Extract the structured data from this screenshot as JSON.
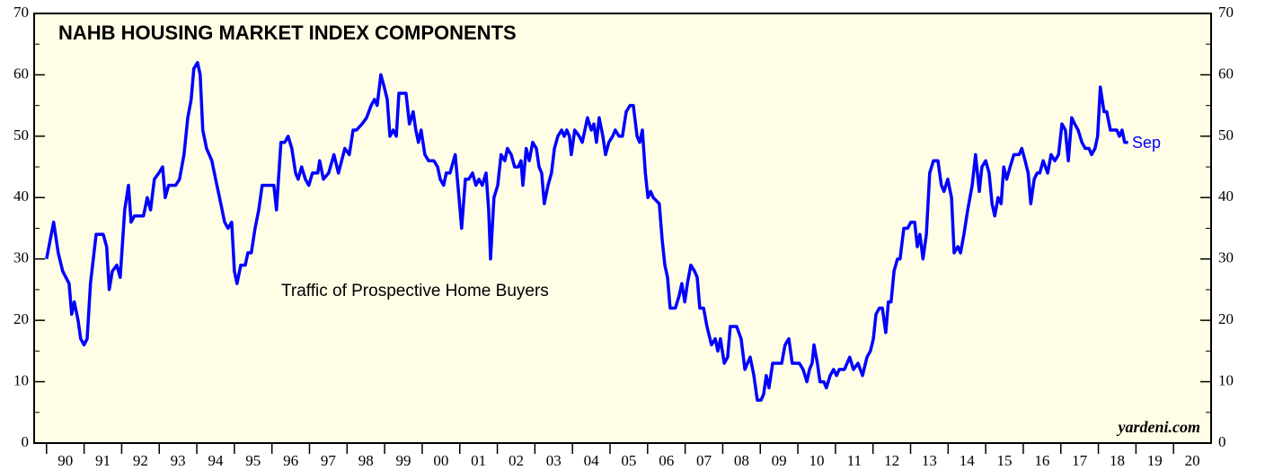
{
  "chart_data": {
    "type": "line",
    "title": "NAHB HOUSING MARKET INDEX COMPONENTS",
    "annotations": [
      "Traffic of Prospective Home Buyers",
      "Sep",
      "yardeni.com"
    ],
    "series": [
      {
        "name": "Traffic of Prospective Home Buyers",
        "color": "#0000ff",
        "x": [
          1990.0,
          1990.19,
          1990.31,
          1990.43,
          1990.6,
          1990.67,
          1990.74,
          1990.84,
          1990.91,
          1991.0,
          1991.08,
          1991.17,
          1991.32,
          1991.51,
          1991.6,
          1991.67,
          1991.75,
          1991.87,
          1991.96,
          1992.08,
          1992.18,
          1992.25,
          1992.34,
          1992.58,
          1992.68,
          1992.77,
          1992.87,
          1992.99,
          1993.09,
          1993.16,
          1993.25,
          1993.44,
          1993.54,
          1993.66,
          1993.76,
          1993.85,
          1993.92,
          1994.02,
          1994.09,
          1994.16,
          1994.26,
          1994.4,
          1994.5,
          1994.64,
          1994.74,
          1994.83,
          1994.93,
          1995.0,
          1995.07,
          1995.17,
          1995.29,
          1995.36,
          1995.45,
          1995.55,
          1995.65,
          1995.74,
          1995.98,
          1996.05,
          1996.12,
          1996.24,
          1996.34,
          1996.43,
          1996.53,
          1996.63,
          1996.7,
          1996.79,
          1996.89,
          1996.98,
          1997.08,
          1997.22,
          1997.27,
          1997.37,
          1997.51,
          1997.65,
          1997.77,
          1997.94,
          1998.06,
          1998.16,
          1998.25,
          1998.4,
          1998.52,
          1998.64,
          1998.73,
          1998.8,
          1998.9,
          1998.99,
          1999.07,
          1999.14,
          1999.23,
          1999.31,
          1999.38,
          1999.57,
          1999.66,
          1999.76,
          1999.83,
          1999.9,
          1999.97,
          2000.07,
          2000.17,
          2000.31,
          2000.41,
          2000.48,
          2000.57,
          2000.64,
          2000.74,
          2000.88,
          2000.98,
          2001.05,
          2001.15,
          2001.24,
          2001.34,
          2001.43,
          2001.51,
          2001.6,
          2001.7,
          2001.77,
          2001.82,
          2001.91,
          2002.01,
          2002.1,
          2002.2,
          2002.27,
          2002.37,
          2002.46,
          2002.56,
          2002.63,
          2002.68,
          2002.77,
          2002.85,
          2002.94,
          2003.04,
          2003.11,
          2003.18,
          2003.25,
          2003.35,
          2003.44,
          2003.52,
          2003.61,
          2003.71,
          2003.78,
          2003.85,
          2003.92,
          2003.97,
          2004.06,
          2004.18,
          2004.26,
          2004.33,
          2004.4,
          2004.5,
          2004.57,
          2004.64,
          2004.71,
          2004.81,
          2004.88,
          2004.97,
          2005.07,
          2005.14,
          2005.24,
          2005.33,
          2005.43,
          2005.53,
          2005.62,
          2005.72,
          2005.79,
          2005.86,
          2005.94,
          2006.01,
          2006.08,
          2006.15,
          2006.31,
          2006.39,
          2006.46,
          2006.53,
          2006.6,
          2006.74,
          2006.84,
          2006.91,
          2006.99,
          2007.06,
          2007.15,
          2007.25,
          2007.32,
          2007.39,
          2007.49,
          2007.58,
          2007.7,
          2007.8,
          2007.87,
          2007.94,
          2008.04,
          2008.13,
          2008.2,
          2008.37,
          2008.49,
          2008.59,
          2008.66,
          2008.73,
          2008.83,
          2008.92,
          2009.02,
          2009.09,
          2009.16,
          2009.23,
          2009.33,
          2009.57,
          2009.66,
          2009.76,
          2009.85,
          2010.04,
          2010.14,
          2010.24,
          2010.31,
          2010.38,
          2010.43,
          2010.52,
          2010.59,
          2010.69,
          2010.76,
          2010.86,
          2010.95,
          2011.03,
          2011.1,
          2011.24,
          2011.38,
          2011.48,
          2011.6,
          2011.72,
          2011.84,
          2011.93,
          2012.01,
          2012.08,
          2012.17,
          2012.25,
          2012.34,
          2012.41,
          2012.48,
          2012.56,
          2012.65,
          2012.72,
          2012.82,
          2012.92,
          2013.01,
          2013.11,
          2013.18,
          2013.25,
          2013.33,
          2013.42,
          2013.51,
          2013.61,
          2013.73,
          2013.82,
          2013.89,
          2013.99,
          2014.09,
          2014.16,
          2014.26,
          2014.33,
          2014.42,
          2014.52,
          2014.64,
          2014.73,
          2014.83,
          2014.9,
          2015.0,
          2015.09,
          2015.17,
          2015.24,
          2015.33,
          2015.41,
          2015.48,
          2015.56,
          2015.65,
          2015.75,
          2015.89,
          2015.96,
          2016.05,
          2016.13,
          2016.2,
          2016.29,
          2016.37,
          2016.44,
          2016.53,
          2016.65,
          2016.74,
          2016.84,
          2016.94,
          2017.03,
          2017.12,
          2017.2,
          2017.29,
          2017.37,
          2017.46,
          2017.56,
          2017.65,
          2017.75,
          2017.82,
          2017.91,
          2017.98,
          2018.05,
          2018.15,
          2018.22,
          2018.32,
          2018.49,
          2018.56,
          2018.63,
          2018.7,
          2018.79
        ],
        "values": [
          30,
          36,
          31,
          28,
          26,
          21,
          23,
          20,
          17,
          16,
          17,
          26,
          34,
          34,
          32,
          25,
          28,
          29,
          27,
          38,
          42,
          36,
          37,
          37,
          40,
          38,
          43,
          44,
          45,
          40,
          42,
          42,
          43,
          47,
          53,
          56,
          61,
          62,
          60,
          51,
          48,
          46,
          43,
          39,
          36,
          35,
          36,
          28,
          26,
          29,
          29,
          31,
          31,
          35,
          38,
          42,
          42,
          42,
          38,
          49,
          49,
          50,
          48,
          44,
          43,
          45,
          43,
          42,
          44,
          44,
          46,
          43,
          44,
          47,
          44,
          48,
          47,
          51,
          51,
          52,
          53,
          55,
          56,
          55,
          60,
          58,
          56,
          50,
          51,
          50,
          57,
          57,
          52,
          54,
          51,
          49,
          51,
          47,
          46,
          46,
          45,
          43,
          42,
          44,
          44,
          47,
          40,
          35,
          43,
          43,
          44,
          42,
          43,
          42,
          44,
          38,
          30,
          40,
          42,
          47,
          46,
          48,
          47,
          45,
          45,
          46,
          42,
          48,
          46,
          49,
          48,
          45,
          44,
          39,
          42,
          44,
          48,
          50,
          51,
          50,
          51,
          50,
          47,
          51,
          50,
          49,
          51,
          53,
          51,
          52,
          49,
          53,
          50,
          47,
          49,
          50,
          51,
          50,
          50,
          54,
          55,
          55,
          50,
          49,
          51,
          44,
          40,
          41,
          40,
          39,
          33,
          29,
          27,
          22,
          22,
          24,
          26,
          23,
          26,
          29,
          28,
          27,
          22,
          22,
          19,
          16,
          17,
          15,
          17,
          13,
          14,
          19,
          19,
          17,
          12,
          13,
          14,
          11,
          7,
          7,
          8,
          11,
          9,
          13,
          13,
          16,
          17,
          13,
          13,
          12,
          10,
          12,
          13,
          16,
          13,
          10,
          10,
          9,
          11,
          12,
          11,
          12,
          12,
          14,
          12,
          13,
          11,
          14,
          15,
          17,
          21,
          22,
          22,
          18,
          23,
          23,
          28,
          30,
          30,
          35,
          35,
          36,
          36,
          32,
          34,
          30,
          34,
          44,
          46,
          46,
          42,
          41,
          43,
          40,
          31,
          32,
          31,
          34,
          38,
          42,
          47,
          41,
          45,
          46,
          44,
          39,
          37,
          40,
          39,
          45,
          43,
          45,
          47,
          47,
          48,
          46,
          44,
          39,
          43,
          44,
          44,
          46,
          44,
          47,
          46,
          47,
          52,
          51,
          46,
          53,
          52,
          51,
          49,
          48,
          48,
          47,
          48,
          50,
          58,
          54,
          54,
          51,
          51,
          50,
          51,
          49,
          49
        ]
      }
    ],
    "xlim": [
      1989.67,
      2021
    ],
    "xticks": [
      {
        "value": 1990.5,
        "label": "90"
      },
      {
        "value": 1991.5,
        "label": "91"
      },
      {
        "value": 1992.5,
        "label": "92"
      },
      {
        "value": 1993.5,
        "label": "93"
      },
      {
        "value": 1994.5,
        "label": "94"
      },
      {
        "value": 1995.5,
        "label": "95"
      },
      {
        "value": 1996.5,
        "label": "96"
      },
      {
        "value": 1997.5,
        "label": "97"
      },
      {
        "value": 1998.5,
        "label": "98"
      },
      {
        "value": 1999.5,
        "label": "99"
      },
      {
        "value": 2000.5,
        "label": "00"
      },
      {
        "value": 2001.5,
        "label": "01"
      },
      {
        "value": 2002.5,
        "label": "02"
      },
      {
        "value": 2003.5,
        "label": "03"
      },
      {
        "value": 2004.5,
        "label": "04"
      },
      {
        "value": 2005.5,
        "label": "05"
      },
      {
        "value": 2006.5,
        "label": "06"
      },
      {
        "value": 2007.5,
        "label": "07"
      },
      {
        "value": 2008.5,
        "label": "08"
      },
      {
        "value": 2009.5,
        "label": "09"
      },
      {
        "value": 2010.5,
        "label": "10"
      },
      {
        "value": 2011.5,
        "label": "11"
      },
      {
        "value": 2012.5,
        "label": "12"
      },
      {
        "value": 2013.5,
        "label": "13"
      },
      {
        "value": 2014.5,
        "label": "14"
      },
      {
        "value": 2015.5,
        "label": "15"
      },
      {
        "value": 2016.5,
        "label": "16"
      },
      {
        "value": 2017.5,
        "label": "17"
      },
      {
        "value": 2018.5,
        "label": "18"
      },
      {
        "value": 2019.5,
        "label": "19"
      },
      {
        "value": 2020.5,
        "label": "20"
      }
    ],
    "ylim": [
      0,
      70
    ],
    "yticks": [
      0,
      10,
      20,
      30,
      40,
      50,
      60,
      70
    ],
    "y2lim": [
      0,
      70
    ],
    "y2ticks": [
      0,
      10,
      20,
      30,
      40,
      50,
      60,
      70
    ],
    "background": "#fffde6"
  }
}
